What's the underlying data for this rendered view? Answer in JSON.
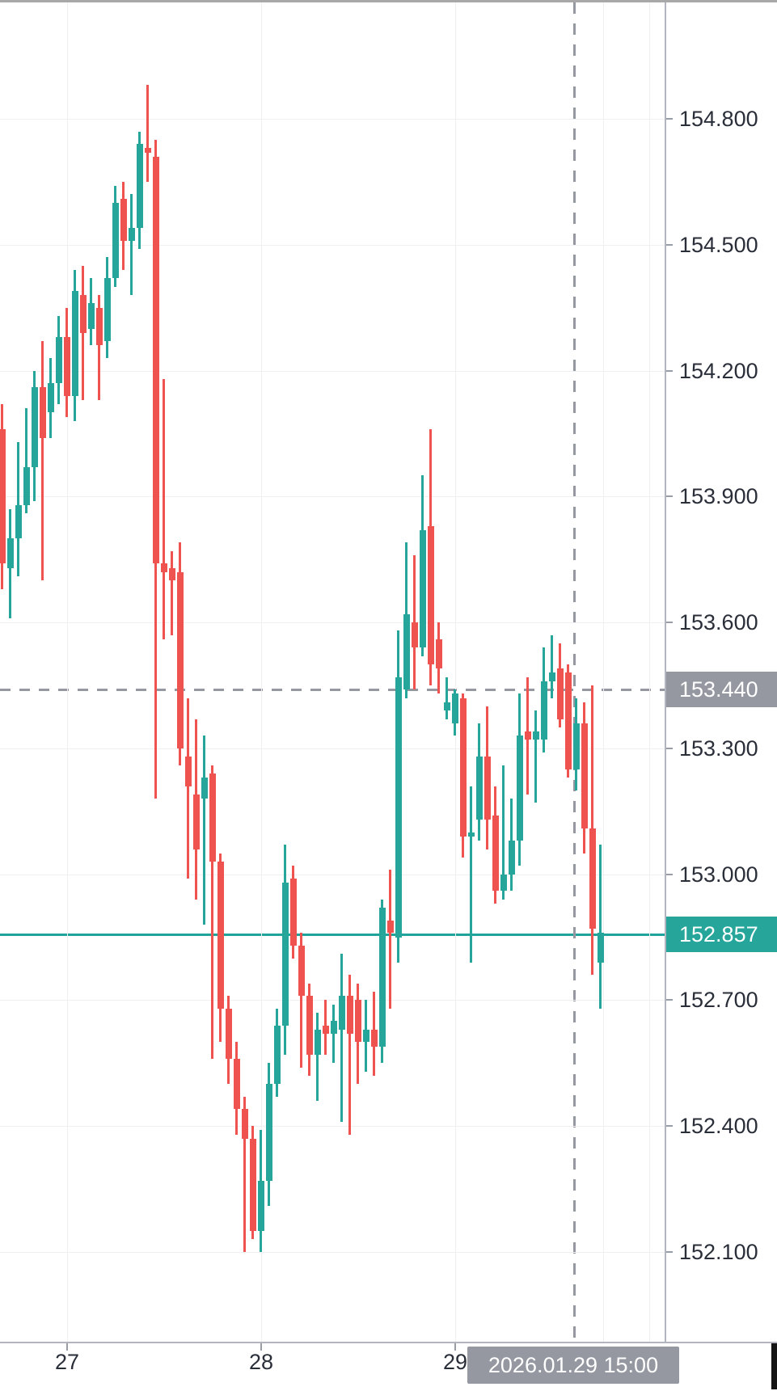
{
  "app": {
    "name": "candlestick-trading-chart"
  },
  "price_axis": {
    "tick_labels": [
      "154.800",
      "154.500",
      "154.200",
      "153.900",
      "153.600",
      "153.300",
      "153.000",
      "152.700",
      "152.400",
      "152.100"
    ],
    "crosshair_badge": "153.440",
    "current_price_badge": "152.857"
  },
  "time_axis": {
    "day_labels": [
      "27",
      "28",
      "29"
    ],
    "crosshair_badge": "2026.01.29 15:00"
  },
  "colors": {
    "up": "#26a69a",
    "down": "#ef5350",
    "crosshair": "#9598a1",
    "price_line": "#1fa39a",
    "grid": "#f0f0f2",
    "axis_border": "#b2b5be",
    "badge_gray": "#9598a1",
    "label_text": "#2a2e39"
  },
  "chart_data": {
    "type": "candlestick",
    "title": "",
    "interval": "1h",
    "ylim": [
      152.0,
      154.95
    ],
    "y_ticks": [
      154.8,
      154.5,
      154.2,
      153.9,
      153.6,
      153.3,
      153.0,
      152.7,
      152.4,
      152.1
    ],
    "grid": true,
    "x_day_ticks": [
      {
        "label": "27",
        "candle_index": 8
      },
      {
        "label": "28",
        "candle_index": 32
      },
      {
        "label": "29",
        "candle_index": 56
      }
    ],
    "extra_vertical_gridline_indices": [
      74.3,
      80.0
    ],
    "crosshair": {
      "price": 153.44,
      "time": "2026.01.29 15:00",
      "candle_index": 70.8
    },
    "last_price": 152.857,
    "candles": [
      [
        154.06,
        154.12,
        153.68,
        153.74
      ],
      [
        153.73,
        153.87,
        153.61,
        153.8
      ],
      [
        153.8,
        154.03,
        153.71,
        153.88
      ],
      [
        153.88,
        154.11,
        153.86,
        153.97
      ],
      [
        153.97,
        154.2,
        153.89,
        154.16
      ],
      [
        154.16,
        154.27,
        153.7,
        154.04
      ],
      [
        154.1,
        154.23,
        154.04,
        154.17
      ],
      [
        154.17,
        154.33,
        154.12,
        154.28
      ],
      [
        154.28,
        154.35,
        154.09,
        154.14
      ],
      [
        154.14,
        154.44,
        154.08,
        154.39
      ],
      [
        154.38,
        154.45,
        154.13,
        154.29
      ],
      [
        154.3,
        154.42,
        154.26,
        154.36
      ],
      [
        154.35,
        154.38,
        154.13,
        154.26
      ],
      [
        154.27,
        154.47,
        154.23,
        154.42
      ],
      [
        154.42,
        154.64,
        154.4,
        154.6
      ],
      [
        154.61,
        154.65,
        154.44,
        154.51
      ],
      [
        154.51,
        154.62,
        154.38,
        154.54
      ],
      [
        154.54,
        154.77,
        154.49,
        154.74
      ],
      [
        154.73,
        154.88,
        154.65,
        154.72
      ],
      [
        154.71,
        154.75,
        153.18,
        153.74
      ],
      [
        153.74,
        154.18,
        153.56,
        153.72
      ],
      [
        153.73,
        153.77,
        153.57,
        153.7
      ],
      [
        153.72,
        153.79,
        153.26,
        153.3
      ],
      [
        153.28,
        153.42,
        152.99,
        153.21
      ],
      [
        153.19,
        153.37,
        152.94,
        153.06
      ],
      [
        153.18,
        153.33,
        152.88,
        153.23
      ],
      [
        153.24,
        153.26,
        152.56,
        153.03
      ],
      [
        153.03,
        153.05,
        152.6,
        152.68
      ],
      [
        152.68,
        152.71,
        152.5,
        152.56
      ],
      [
        152.56,
        152.6,
        152.38,
        152.44
      ],
      [
        152.44,
        152.47,
        152.1,
        152.37
      ],
      [
        152.37,
        152.4,
        152.13,
        152.15
      ],
      [
        152.15,
        152.39,
        152.1,
        152.27
      ],
      [
        152.27,
        152.55,
        152.21,
        152.5
      ],
      [
        152.5,
        152.68,
        152.47,
        152.64
      ],
      [
        152.64,
        153.07,
        152.57,
        152.98
      ],
      [
        152.99,
        153.02,
        152.8,
        152.83
      ],
      [
        152.83,
        152.86,
        152.54,
        152.71
      ],
      [
        152.71,
        152.74,
        152.52,
        152.57
      ],
      [
        152.57,
        152.67,
        152.46,
        152.63
      ],
      [
        152.64,
        152.7,
        152.57,
        152.62
      ],
      [
        152.62,
        152.69,
        152.55,
        152.65
      ],
      [
        152.63,
        152.81,
        152.41,
        152.71
      ],
      [
        152.71,
        152.76,
        152.38,
        152.62
      ],
      [
        152.7,
        152.74,
        152.5,
        152.6
      ],
      [
        152.6,
        152.7,
        152.53,
        152.63
      ],
      [
        152.63,
        152.72,
        152.52,
        152.59
      ],
      [
        152.59,
        152.94,
        152.55,
        152.92
      ],
      [
        152.89,
        153.01,
        152.68,
        152.86
      ],
      [
        152.85,
        153.58,
        152.79,
        153.47
      ],
      [
        153.44,
        153.79,
        153.42,
        153.62
      ],
      [
        153.6,
        153.76,
        153.44,
        153.54
      ],
      [
        153.54,
        153.95,
        153.52,
        153.82
      ],
      [
        153.83,
        154.06,
        153.45,
        153.5
      ],
      [
        153.56,
        153.6,
        153.43,
        153.49
      ],
      [
        153.39,
        153.47,
        153.37,
        153.41
      ],
      [
        153.36,
        153.44,
        153.33,
        153.43
      ],
      [
        153.42,
        153.43,
        153.04,
        153.09
      ],
      [
        153.09,
        153.21,
        152.79,
        153.1
      ],
      [
        153.13,
        153.36,
        153.08,
        153.28
      ],
      [
        153.28,
        153.4,
        153.06,
        153.13
      ],
      [
        153.14,
        153.21,
        152.93,
        152.96
      ],
      [
        152.96,
        153.26,
        152.94,
        153.0
      ],
      [
        153.0,
        153.18,
        152.96,
        153.08
      ],
      [
        153.08,
        153.43,
        153.02,
        153.33
      ],
      [
        153.34,
        153.47,
        153.19,
        153.32
      ],
      [
        153.32,
        153.39,
        153.17,
        153.34
      ],
      [
        153.32,
        153.54,
        153.29,
        153.46
      ],
      [
        153.46,
        153.57,
        153.42,
        153.48
      ],
      [
        153.49,
        153.55,
        153.35,
        153.37
      ],
      [
        153.48,
        153.5,
        153.23,
        153.25
      ],
      [
        153.25,
        153.42,
        153.2,
        153.36
      ],
      [
        153.36,
        153.41,
        153.05,
        153.11
      ],
      [
        153.11,
        153.45,
        152.76,
        152.87
      ],
      [
        152.79,
        153.07,
        152.68,
        152.86
      ]
    ]
  }
}
